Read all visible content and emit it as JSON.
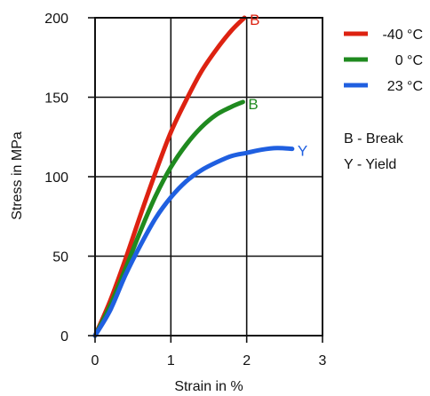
{
  "chart_data": {
    "type": "line",
    "title": "",
    "xlabel": "Strain in %",
    "ylabel": "Stress in MPa",
    "xlim": [
      0,
      3
    ],
    "ylim": [
      0,
      200
    ],
    "xticks": [
      "0",
      "1",
      "2",
      "3"
    ],
    "yticks": [
      "0",
      "50",
      "100",
      "150",
      "200"
    ],
    "grid": true,
    "legend_position": "right",
    "series": [
      {
        "name": "-40 °C",
        "color": "#dd2211",
        "points": [
          [
            0,
            0
          ],
          [
            0.2,
            22
          ],
          [
            0.4,
            48
          ],
          [
            0.6,
            76
          ],
          [
            0.8,
            103
          ],
          [
            1.0,
            128
          ],
          [
            1.2,
            148
          ],
          [
            1.4,
            166
          ],
          [
            1.6,
            180
          ],
          [
            1.8,
            192
          ],
          [
            1.97,
            200
          ]
        ],
        "end_label": "B"
      },
      {
        "name": "0 °C",
        "color": "#1f8a1f",
        "points": [
          [
            0,
            0
          ],
          [
            0.2,
            19
          ],
          [
            0.4,
            42
          ],
          [
            0.6,
            66
          ],
          [
            0.8,
            88
          ],
          [
            1.0,
            106
          ],
          [
            1.2,
            120
          ],
          [
            1.4,
            131
          ],
          [
            1.6,
            139
          ],
          [
            1.8,
            144
          ],
          [
            1.95,
            147
          ]
        ],
        "end_label": "B"
      },
      {
        "name": "23 °C",
        "color": "#1f5fe0",
        "points": [
          [
            0,
            0
          ],
          [
            0.2,
            16
          ],
          [
            0.4,
            38
          ],
          [
            0.6,
            57
          ],
          [
            0.8,
            74
          ],
          [
            1.0,
            87
          ],
          [
            1.2,
            97
          ],
          [
            1.4,
            104
          ],
          [
            1.6,
            109
          ],
          [
            1.8,
            113
          ],
          [
            2.0,
            115
          ],
          [
            2.2,
            117
          ],
          [
            2.4,
            118
          ],
          [
            2.6,
            117.5
          ]
        ],
        "end_label": "Y"
      }
    ],
    "legend_order": [
      "-40 °C",
      "0 °C",
      "23 °C"
    ],
    "notes": [
      "B - Break",
      "Y - Yield"
    ]
  }
}
